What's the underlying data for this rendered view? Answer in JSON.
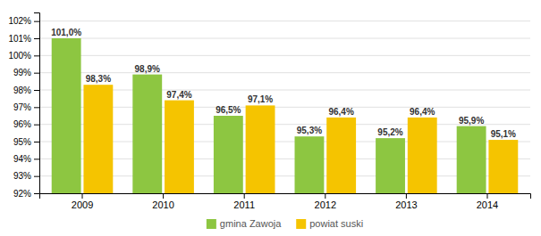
{
  "chart_data": {
    "type": "bar",
    "categories": [
      "2009",
      "2010",
      "2011",
      "2012",
      "2013",
      "2014"
    ],
    "series": [
      {
        "name": "gmina Zawoja",
        "color": "#8DC641",
        "values": [
          101.0,
          98.9,
          96.5,
          95.3,
          95.2,
          95.9
        ],
        "value_labels": [
          "101,0%",
          "98,9%",
          "96,5%",
          "95,3%",
          "95,2%",
          "95,9%"
        ]
      },
      {
        "name": "powiat suski",
        "color": "#F5C400",
        "values": [
          98.3,
          97.4,
          97.1,
          96.4,
          96.4,
          95.1
        ],
        "value_labels": [
          "98,3%",
          "97,4%",
          "97,1%",
          "96,4%",
          "96,4%",
          "95,1%"
        ]
      }
    ],
    "ylim": [
      92,
      102.5
    ],
    "yticks": [
      {
        "value": 92,
        "label": "92%"
      },
      {
        "value": 93,
        "label": "93%"
      },
      {
        "value": 94,
        "label": "94%"
      },
      {
        "value": 95,
        "label": "95%"
      },
      {
        "value": 96,
        "label": "96%"
      },
      {
        "value": 97,
        "label": "97%"
      },
      {
        "value": 98,
        "label": "98%"
      },
      {
        "value": 99,
        "label": "99%"
      },
      {
        "value": 100,
        "label": "100%"
      },
      {
        "value": 101,
        "label": "101%"
      },
      {
        "value": 102,
        "label": "102%"
      }
    ],
    "grid": true,
    "data_labels": true,
    "legend": "bottom"
  }
}
